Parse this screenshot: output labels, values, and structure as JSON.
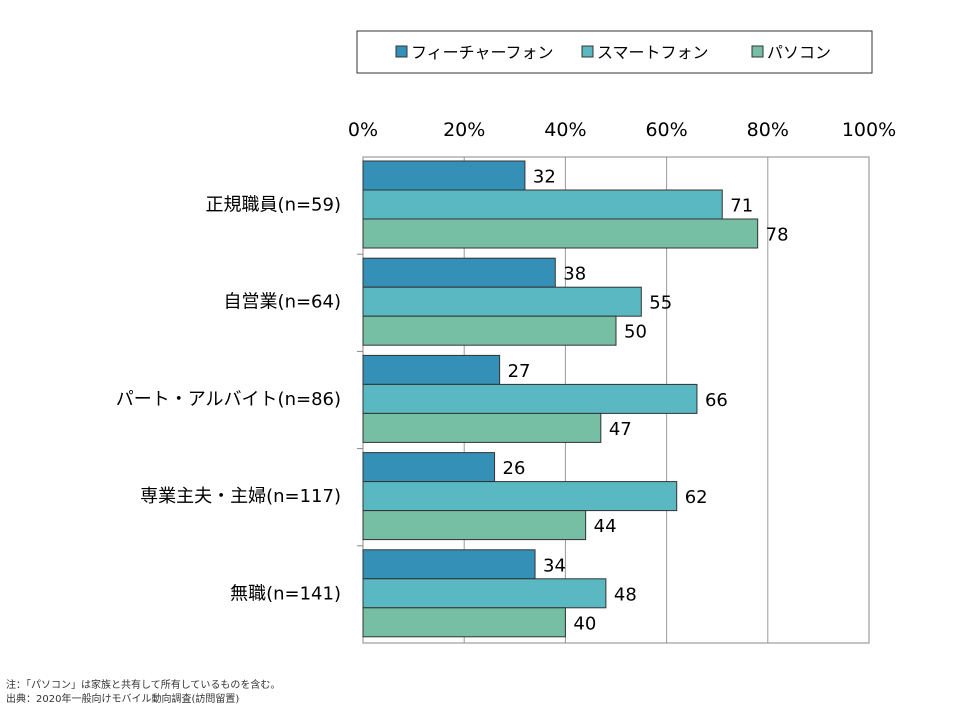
{
  "chart_data": {
    "type": "bar",
    "orientation": "horizontal",
    "categories": [
      "正規職員(n=59)",
      "自営業(n=64)",
      "パート・アルバイト(n=86)",
      "専業主夫・主婦(n=117)",
      "無職(n=141)"
    ],
    "series": [
      {
        "name": "フィーチャーフォン",
        "color": "#3590b8",
        "values": [
          32,
          38,
          27,
          26,
          34
        ]
      },
      {
        "name": "スマートフォン",
        "color": "#5ab8c2",
        "values": [
          71,
          55,
          66,
          62,
          48
        ]
      },
      {
        "name": "パソコン",
        "color": "#77bfa4",
        "values": [
          78,
          50,
          47,
          44,
          40
        ]
      }
    ],
    "xlim": [
      0,
      100
    ],
    "xticks": [
      "0%",
      "20%",
      "40%",
      "60%",
      "80%",
      "100%"
    ],
    "grid": true,
    "legend_position": "top"
  },
  "footnotes": {
    "note": "注：「パソコン」は家族と共有して所有しているものを含む。",
    "source": "出典：2020年一般向けモバイル動向調査(訪問留置)"
  }
}
